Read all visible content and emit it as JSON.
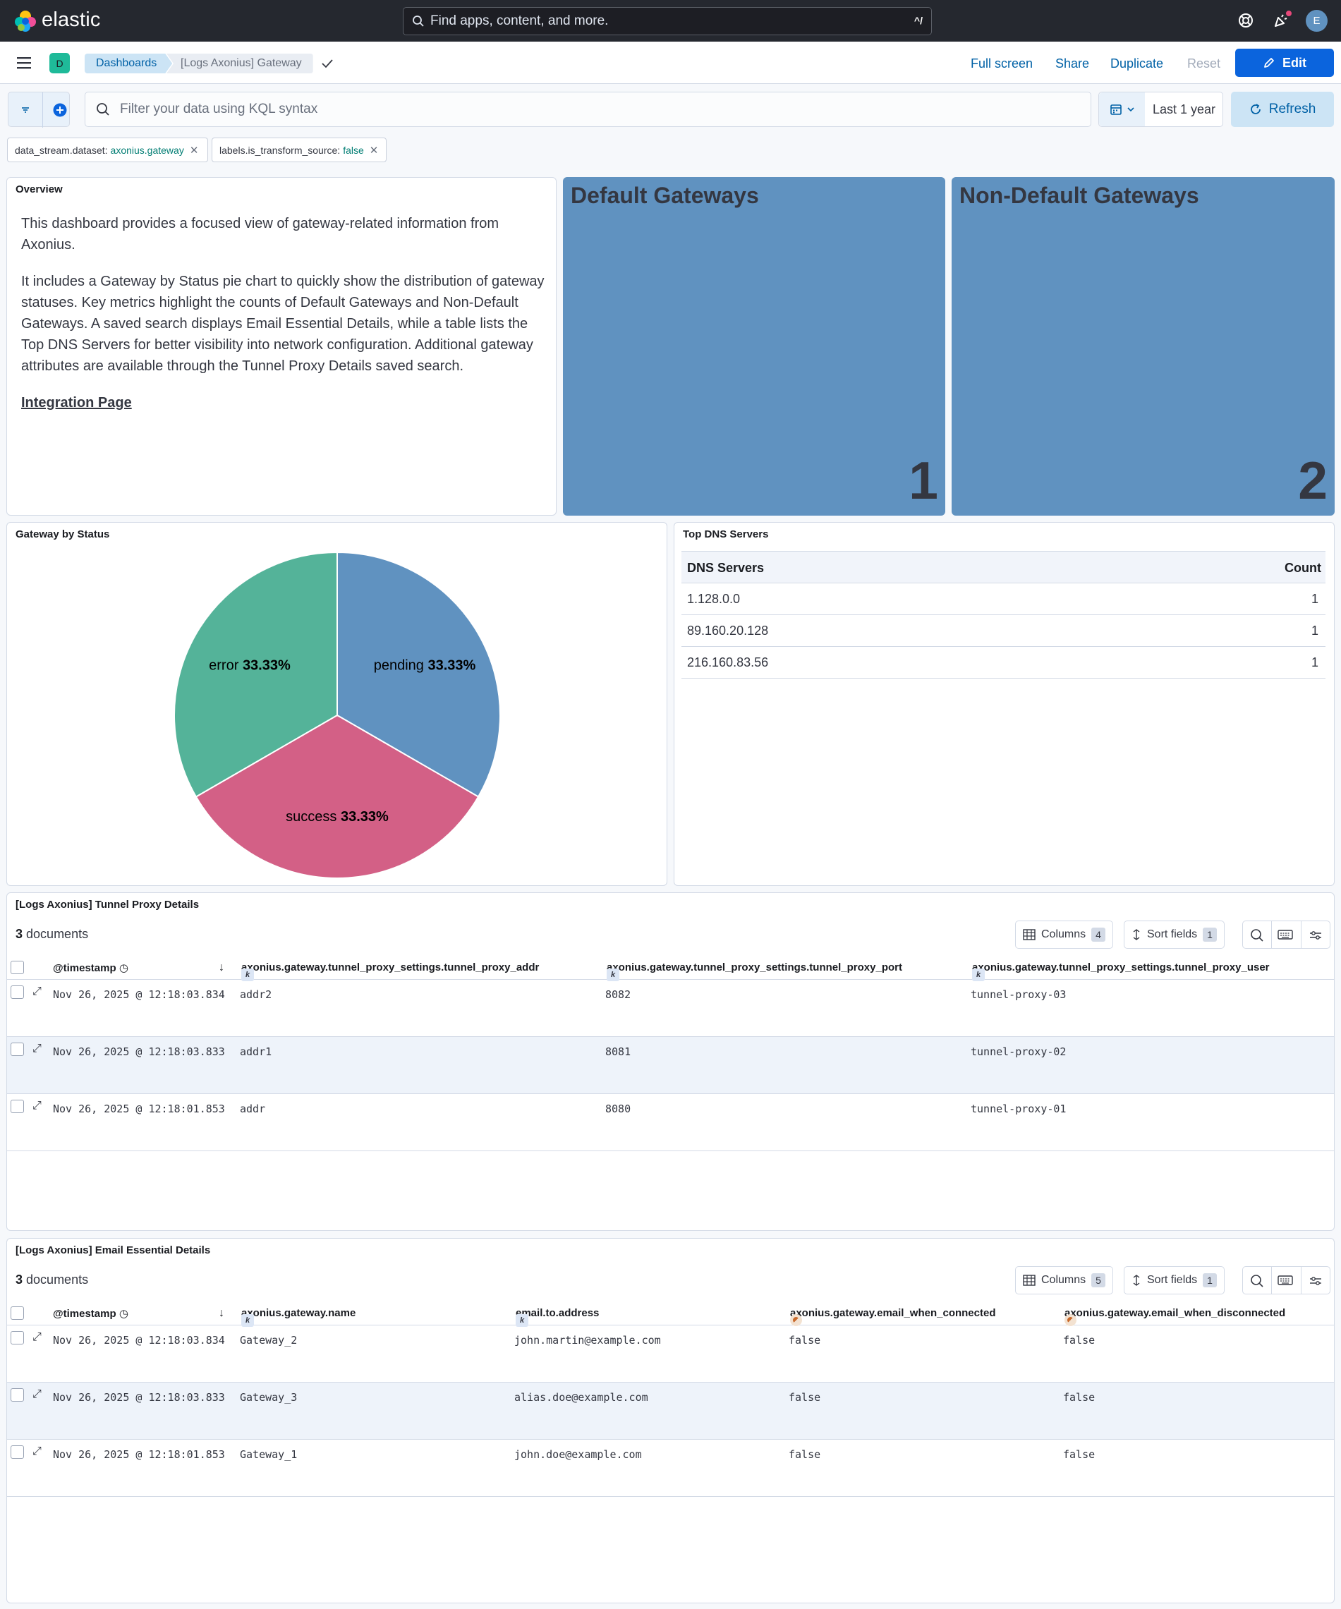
{
  "topbar": {
    "brand": "elastic",
    "search_placeholder": "Find apps, content, and more.",
    "search_shortcut": "^/",
    "avatar_initial": "E"
  },
  "header": {
    "space_initial": "D",
    "breadcrumbs": [
      "Dashboards",
      "[Logs Axonius] Gateway"
    ],
    "actions": {
      "full_screen": "Full screen",
      "share": "Share",
      "duplicate": "Duplicate",
      "reset": "Reset",
      "edit": "Edit"
    }
  },
  "query": {
    "placeholder": "Filter your data using KQL syntax",
    "time_range": "Last 1 year",
    "refresh_label": "Refresh",
    "filters": [
      {
        "field": "data_stream.dataset:",
        "value": "axonius.gateway"
      },
      {
        "field": "labels.is_transform_source:",
        "value": "false"
      }
    ]
  },
  "overview": {
    "title": "Overview",
    "para1": "This dashboard provides a focused view of gateway-related information from Axonius.",
    "para2": "It includes a Gateway by Status pie chart to quickly show the distribution of gateway statuses. Key metrics highlight the counts of Default Gateways and Non-Default Gateways. A saved search displays Email Essential Details, while a table lists the Top DNS Servers for better visibility into network configuration. Additional gateway attributes are available through the Tunnel Proxy Details saved search.",
    "link": "Integration Page"
  },
  "metrics": [
    {
      "title": "Default Gateways",
      "value": "1"
    },
    {
      "title": "Non-Default Gateways",
      "value": "2"
    }
  ],
  "colors": {
    "metric_bg": "#6092c0",
    "pending": "#6092c0",
    "success": "#d36086",
    "error": "#54b399",
    "primary": "#0b64dd"
  },
  "pie_panel": {
    "title": "Gateway by Status"
  },
  "chart_data": {
    "type": "pie",
    "title": "Gateway by Status",
    "series": [
      {
        "name": "pending",
        "value": 33.33,
        "label": "33.33%",
        "color": "#6092c0"
      },
      {
        "name": "success",
        "value": 33.33,
        "label": "33.33%",
        "color": "#d36086"
      },
      {
        "name": "error",
        "value": 33.33,
        "label": "33.33%",
        "color": "#54b399"
      }
    ]
  },
  "dns": {
    "title": "Top DNS Servers",
    "columns": [
      "DNS Servers",
      "Count"
    ],
    "rows": [
      [
        "1.128.0.0",
        "1"
      ],
      [
        "89.160.20.128",
        "1"
      ],
      [
        "216.160.83.56",
        "1"
      ]
    ]
  },
  "tunnel": {
    "title": "[Logs Axonius] Tunnel Proxy Details",
    "count": "3",
    "count_label": "documents",
    "columns_label": "Columns",
    "columns_count": "4",
    "sort_label": "Sort fields",
    "sort_count": "1",
    "headers": [
      "@timestamp",
      "axonius.gateway.tunnel_proxy_settings.tunnel_proxy_addr",
      "axonius.gateway.tunnel_proxy_settings.tunnel_proxy_port",
      "axonius.gateway.tunnel_proxy_settings.tunnel_proxy_user"
    ],
    "rows": [
      [
        "Nov 26, 2025 @ 12:18:03.834",
        "addr2",
        "8082",
        "tunnel-proxy-03"
      ],
      [
        "Nov 26, 2025 @ 12:18:03.833",
        "addr1",
        "8081",
        "tunnel-proxy-02"
      ],
      [
        "Nov 26, 2025 @ 12:18:01.853",
        "addr",
        "8080",
        "tunnel-proxy-01"
      ]
    ]
  },
  "email": {
    "title": "[Logs Axonius] Email Essential Details",
    "count": "3",
    "count_label": "documents",
    "columns_label": "Columns",
    "columns_count": "5",
    "sort_label": "Sort fields",
    "sort_count": "1",
    "headers": [
      "@timestamp",
      "axonius.gateway.name",
      "email.to.address",
      "axonius.gateway.email_when_connected",
      "axonius.gateway.email_when_disconnected"
    ],
    "rows": [
      [
        "Nov 26, 2025 @ 12:18:03.834",
        "Gateway_2",
        "john.martin@example.com",
        "false",
        "false"
      ],
      [
        "Nov 26, 2025 @ 12:18:03.833",
        "Gateway_3",
        "alias.doe@example.com",
        "false",
        "false"
      ],
      [
        "Nov 26, 2025 @ 12:18:01.853",
        "Gateway_1",
        "john.doe@example.com",
        "false",
        "false"
      ]
    ]
  }
}
